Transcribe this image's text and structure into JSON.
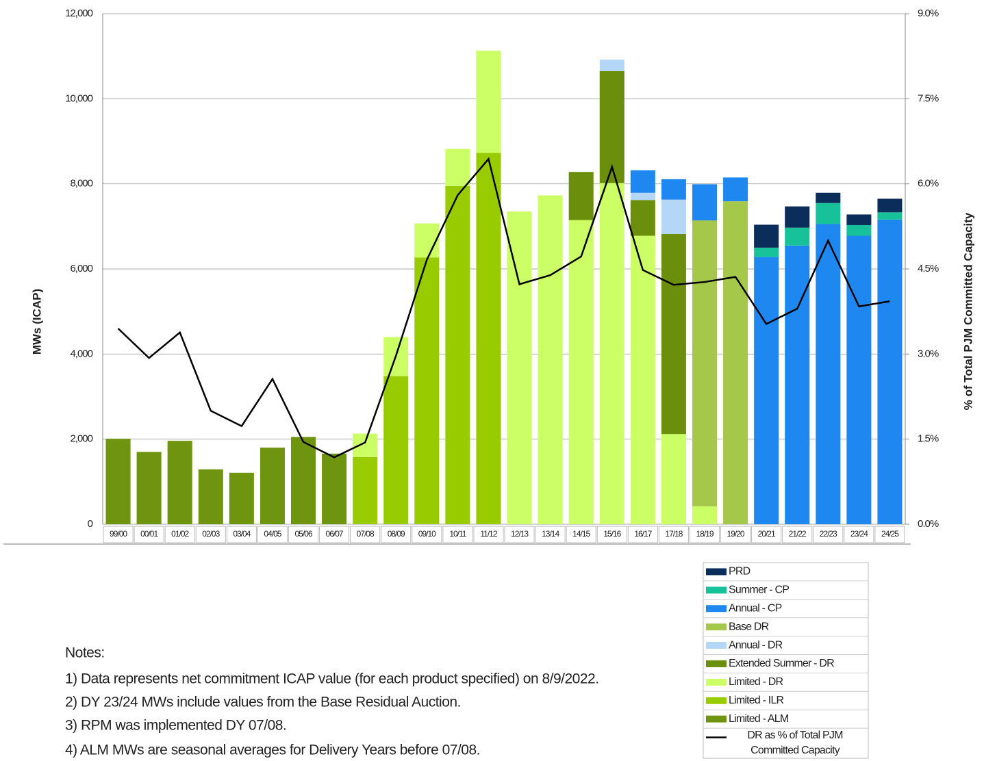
{
  "chart_data": {
    "type": "bar",
    "stacked": true,
    "categories": [
      "99/00",
      "00/01",
      "01/02",
      "02/03",
      "03/04",
      "04/05",
      "05/06",
      "06/07",
      "07/08",
      "08/09",
      "09/10",
      "10/11",
      "11/12",
      "12/13",
      "13/14",
      "14/15",
      "15/16",
      "16/17",
      "17/18",
      "18/19",
      "19/20",
      "20/21",
      "21/22",
      "22/23",
      "23/24",
      "24/25"
    ],
    "series": [
      {
        "name": "PRD",
        "color": "#0b2d5a",
        "values": [
          null,
          null,
          null,
          null,
          null,
          null,
          null,
          null,
          null,
          null,
          null,
          null,
          null,
          null,
          null,
          null,
          null,
          null,
          null,
          null,
          null,
          540,
          500,
          240,
          250,
          320
        ]
      },
      {
        "name": "Summer - CP",
        "color": "#17c29a",
        "values": [
          null,
          null,
          null,
          null,
          null,
          null,
          null,
          null,
          null,
          null,
          null,
          null,
          null,
          null,
          null,
          null,
          null,
          null,
          null,
          null,
          null,
          220,
          420,
          490,
          250,
          170
        ]
      },
      {
        "name": "Annual - CP",
        "color": "#1e88f0",
        "values": [
          null,
          null,
          null,
          null,
          null,
          null,
          null,
          null,
          null,
          null,
          null,
          null,
          null,
          null,
          null,
          null,
          null,
          530,
          480,
          850,
          560,
          6280,
          6550,
          7060,
          6780,
          7160
        ]
      },
      {
        "name": "Base DR",
        "color": "#a6c84a",
        "values": [
          null,
          null,
          null,
          null,
          null,
          null,
          null,
          null,
          null,
          null,
          null,
          null,
          null,
          null,
          null,
          null,
          null,
          null,
          null,
          6720,
          7590,
          null,
          null,
          null,
          null,
          null
        ]
      },
      {
        "name": "Annual - DR",
        "color": "#b4d7f7",
        "values": [
          null,
          null,
          null,
          null,
          null,
          null,
          null,
          null,
          null,
          null,
          null,
          null,
          null,
          null,
          null,
          null,
          270,
          170,
          810,
          null,
          null,
          null,
          null,
          null,
          null,
          null
        ]
      },
      {
        "name": "Extended Summer - DR",
        "color": "#6b8e0c",
        "values": [
          null,
          null,
          null,
          null,
          null,
          null,
          null,
          null,
          null,
          null,
          null,
          null,
          null,
          null,
          null,
          1130,
          2630,
          840,
          4700,
          null,
          null,
          null,
          null,
          null,
          null,
          null
        ]
      },
      {
        "name": "Limited - DR",
        "color": "#ccff66",
        "values": [
          null,
          null,
          null,
          null,
          null,
          null,
          null,
          null,
          550,
          920,
          800,
          870,
          2400,
          7350,
          7730,
          7150,
          8020,
          6780,
          2120,
          420,
          null,
          null,
          null,
          null,
          null,
          null
        ]
      },
      {
        "name": "Limited - ILR",
        "color": "#99cc00",
        "values": [
          null,
          null,
          null,
          null,
          null,
          null,
          null,
          null,
          1580,
          3480,
          6270,
          7950,
          8730,
          null,
          null,
          null,
          null,
          null,
          null,
          null,
          null,
          null,
          null,
          null,
          null,
          null
        ]
      },
      {
        "name": "Limited - ALM",
        "color": "#6f9410",
        "values": [
          2010,
          1700,
          1960,
          1290,
          1210,
          1800,
          2050,
          1660,
          null,
          null,
          null,
          null,
          null,
          null,
          null,
          null,
          null,
          null,
          null,
          null,
          null,
          null,
          null,
          null,
          null,
          null
        ]
      },
      {
        "name": "DR as % of Total PJM Committed Capacity",
        "type": "line",
        "axis": "y2",
        "color": "#000000",
        "values": [
          3.45,
          2.93,
          3.38,
          2.0,
          1.73,
          2.56,
          1.45,
          1.18,
          1.44,
          2.97,
          4.66,
          5.8,
          6.44,
          4.23,
          4.39,
          4.72,
          6.3,
          4.48,
          4.22,
          4.27,
          4.36,
          3.53,
          3.8,
          5.0,
          3.84,
          3.93
        ]
      }
    ],
    "y_label": "MWs (ICAP)",
    "y2_label": "% of Total PJM Committed Capacity",
    "ylim": [
      0,
      12000
    ],
    "yticks": [
      0,
      {
        "value": 2000,
        "label": "2,000"
      },
      {
        "value": 4000,
        "label": "4,000"
      },
      {
        "value": 6000,
        "label": "6,000"
      },
      {
        "value": 8000,
        "label": "8,000"
      },
      {
        "value": 10000,
        "label": "10,000"
      },
      {
        "value": 12000,
        "label": "12,000"
      }
    ],
    "y2lim": [
      0,
      9
    ],
    "y2ticks": [
      {
        "value": 0,
        "label": "0.0%"
      },
      {
        "value": 1.5,
        "label": "1.5%"
      },
      {
        "value": 3,
        "label": "3.0%"
      },
      {
        "value": 4.5,
        "label": "4.5%"
      },
      {
        "value": 6,
        "label": "6.0%"
      },
      {
        "value": 7.5,
        "label": "7.5%"
      },
      {
        "value": 9,
        "label": "9.0%"
      }
    ],
    "grid": true
  },
  "notes": {
    "title": "Notes:",
    "items": [
      "1) Data represents net commitment ICAP value (for each product specified) on 8/9/2022.",
      "2) DY 23/24 MWs include values from the Base Residual Auction.",
      "3) RPM was implemented DY 07/08.",
      "4) ALM MWs are seasonal averages for Delivery Years before 07/08."
    ]
  }
}
